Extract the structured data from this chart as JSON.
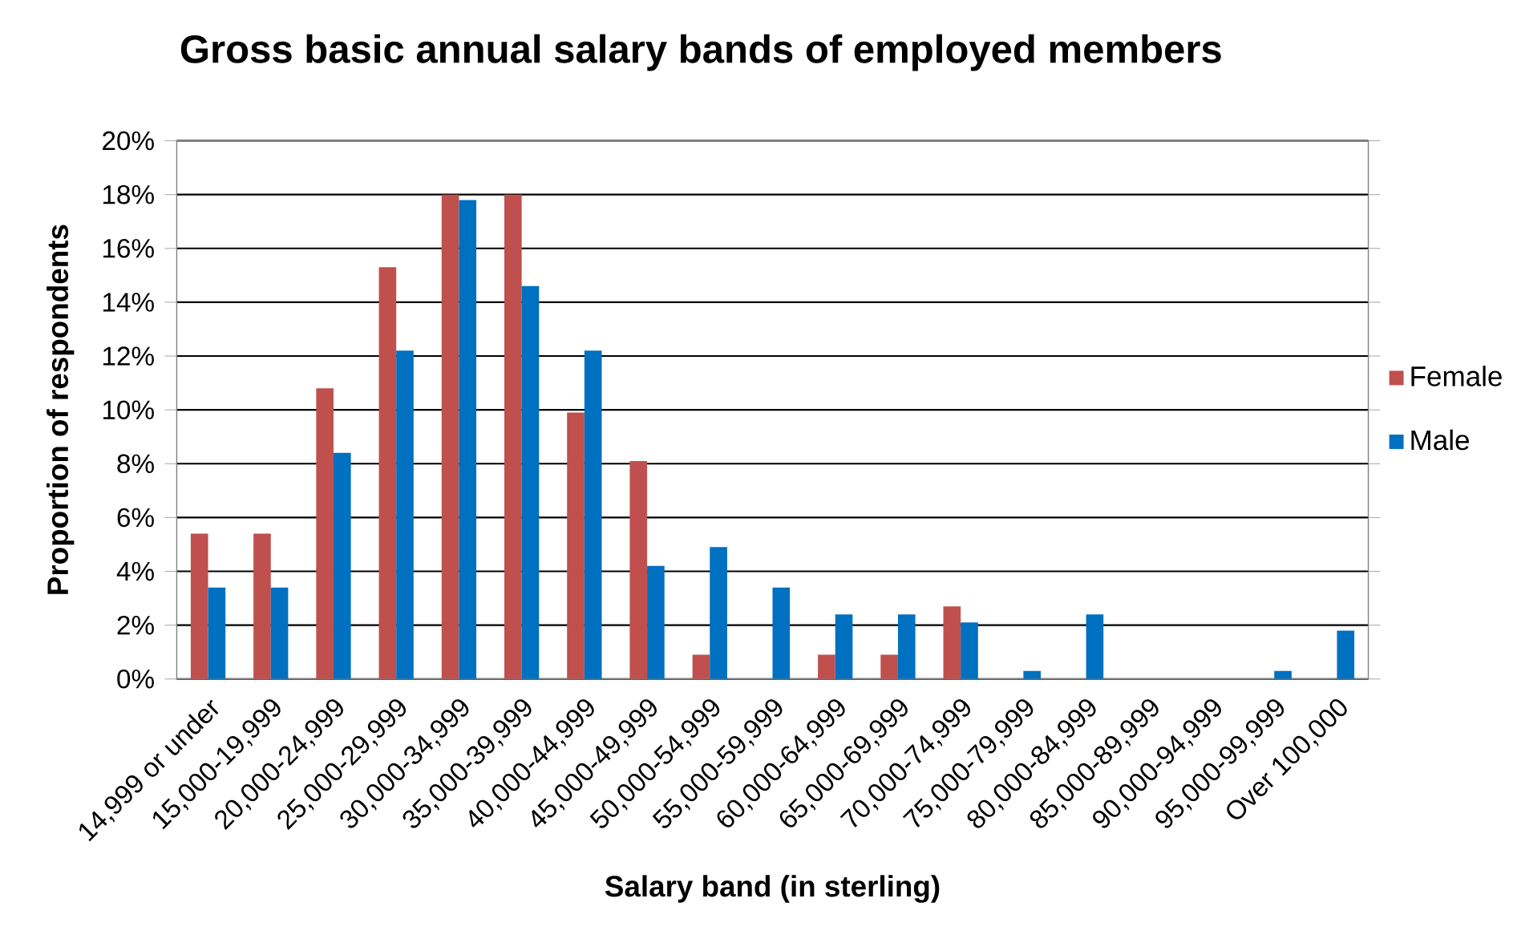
{
  "chart_data": {
    "type": "bar",
    "title": "Gross basic annual salary bands of employed members",
    "xlabel": "Salary band (in sterling)",
    "ylabel": "Proportion of respondents",
    "categories": [
      "14,999 or under",
      "15,000-19,999",
      "20,000-24,999",
      "25,000-29,999",
      "30,000-34,999",
      "35,000-39,999",
      "40,000-44,999",
      "45,000-49,999",
      "50,000-54,999",
      "55,000-59,999",
      "60,000-64,999",
      "65,000-69,999",
      "70,000-74,999",
      "75,000-79,999",
      "80,000-84,999",
      "85,000-89,999",
      "90,000-94,999",
      "95,000-99,999",
      "Over 100,000"
    ],
    "series": [
      {
        "name": "Female",
        "color": "#c0504d",
        "values": [
          5.4,
          5.4,
          10.8,
          15.3,
          18.0,
          18.0,
          9.9,
          8.1,
          0.9,
          0,
          0.9,
          0.9,
          2.7,
          0,
          0,
          0,
          0,
          0,
          0
        ]
      },
      {
        "name": "Male",
        "color": "#0070c0",
        "values": [
          3.4,
          3.4,
          8.4,
          12.2,
          17.8,
          14.6,
          12.2,
          4.2,
          4.9,
          3.4,
          2.4,
          2.4,
          2.1,
          0.3,
          2.4,
          0,
          0,
          0.3,
          1.8
        ]
      }
    ],
    "ylim": [
      0,
      20
    ],
    "yticks": [
      {
        "value": 0,
        "label": "0%"
      },
      {
        "value": 2,
        "label": "2%"
      },
      {
        "value": 4,
        "label": "4%"
      },
      {
        "value": 6,
        "label": "6%"
      },
      {
        "value": 8,
        "label": "8%"
      },
      {
        "value": 10,
        "label": "10%"
      },
      {
        "value": 12,
        "label": "12%"
      },
      {
        "value": 14,
        "label": "14%"
      },
      {
        "value": 16,
        "label": "16%"
      },
      {
        "value": 18,
        "label": "18%"
      },
      {
        "value": 20,
        "label": "20%"
      }
    ],
    "grid": "y",
    "legend": "right"
  }
}
